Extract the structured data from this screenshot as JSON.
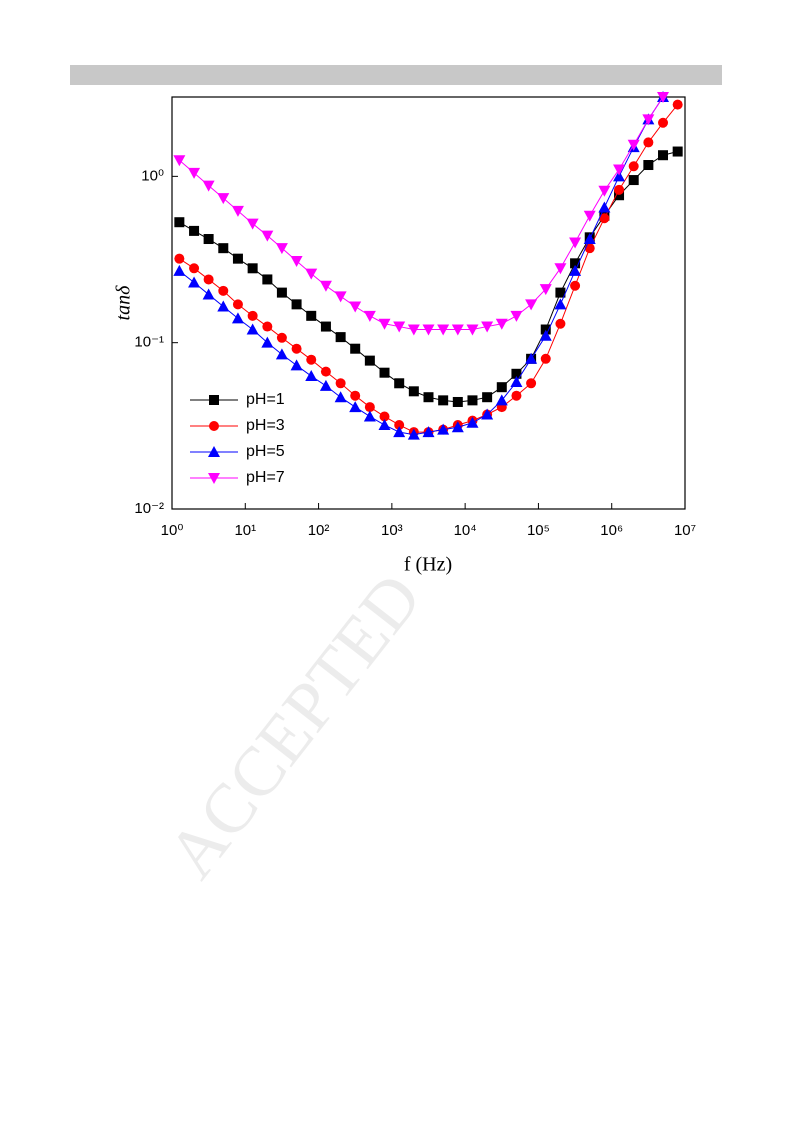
{
  "chart_data": {
    "type": "line",
    "x_label": "f (Hz)",
    "y_label": "tanδ",
    "xscale": "log",
    "yscale": "log",
    "xlim": [
      1,
      10000000
    ],
    "ylim": [
      0.01,
      3.0
    ],
    "xticks": [
      {
        "value": 1,
        "label": "10⁰"
      },
      {
        "value": 10,
        "label": "10¹"
      },
      {
        "value": 100,
        "label": "10²"
      },
      {
        "value": 1000,
        "label": "10³"
      },
      {
        "value": 10000,
        "label": "10⁴"
      },
      {
        "value": 100000,
        "label": "10⁵"
      },
      {
        "value": 1000000,
        "label": "10⁶"
      },
      {
        "value": 10000000,
        "label": "10⁷"
      }
    ],
    "yticks": [
      {
        "value": 0.01,
        "label": "10⁻²"
      },
      {
        "value": 0.1,
        "label": "10⁻¹"
      },
      {
        "value": 1,
        "label": "10⁰"
      }
    ],
    "legend": "lower-left",
    "x": [
      1.26,
      2.0,
      3.16,
      5.01,
      7.94,
      12.6,
      20,
      31.6,
      50.1,
      79.4,
      126,
      200,
      316,
      501,
      794,
      1259,
      1995,
      3162,
      5012,
      7943,
      12589,
      19953,
      31623,
      50119,
      79433,
      125893,
      199526,
      316228,
      501187,
      794328,
      1258925,
      1995262,
      3162278,
      5011872,
      7943282
    ],
    "series": [
      {
        "name": "pH=1",
        "color": "#000000",
        "marker": "square",
        "values": [
          0.53,
          0.47,
          0.42,
          0.37,
          0.32,
          0.28,
          0.24,
          0.2,
          0.17,
          0.145,
          0.125,
          0.108,
          0.092,
          0.078,
          0.066,
          0.057,
          0.051,
          0.047,
          0.045,
          0.044,
          0.045,
          0.047,
          0.054,
          0.065,
          0.08,
          0.12,
          0.2,
          0.3,
          0.43,
          0.58,
          0.77,
          0.95,
          1.17,
          1.34,
          1.41
        ]
      },
      {
        "name": "pH=3",
        "color": "#ff0000",
        "marker": "circle",
        "values": [
          0.32,
          0.28,
          0.24,
          0.205,
          0.17,
          0.145,
          0.125,
          0.107,
          0.092,
          0.079,
          0.067,
          0.057,
          0.048,
          0.041,
          0.036,
          0.032,
          0.029,
          0.029,
          0.03,
          0.032,
          0.034,
          0.037,
          0.041,
          0.048,
          0.057,
          0.08,
          0.13,
          0.22,
          0.37,
          0.56,
          0.83,
          1.15,
          1.6,
          2.1,
          2.7
        ]
      },
      {
        "name": "pH=5",
        "color": "#0000ff",
        "marker": "triangle-up",
        "values": [
          0.27,
          0.23,
          0.195,
          0.165,
          0.14,
          0.12,
          0.1,
          0.085,
          0.073,
          0.063,
          0.055,
          0.047,
          0.041,
          0.036,
          0.032,
          0.029,
          0.028,
          0.029,
          0.03,
          0.031,
          0.033,
          0.037,
          0.045,
          0.058,
          0.08,
          0.11,
          0.17,
          0.27,
          0.42,
          0.65,
          1.0,
          1.5,
          2.2,
          3.0,
          null
        ]
      },
      {
        "name": "pH=7",
        "color": "#ff00ff",
        "marker": "triangle-down",
        "values": [
          1.25,
          1.05,
          0.88,
          0.74,
          0.62,
          0.52,
          0.44,
          0.37,
          0.31,
          0.26,
          0.22,
          0.19,
          0.165,
          0.145,
          0.13,
          0.125,
          0.12,
          0.12,
          0.12,
          0.12,
          0.12,
          0.125,
          0.13,
          0.145,
          0.17,
          0.21,
          0.28,
          0.4,
          0.58,
          0.82,
          1.1,
          1.55,
          2.2,
          3.0,
          null
        ]
      }
    ]
  },
  "watermark": "ACCEPTED"
}
